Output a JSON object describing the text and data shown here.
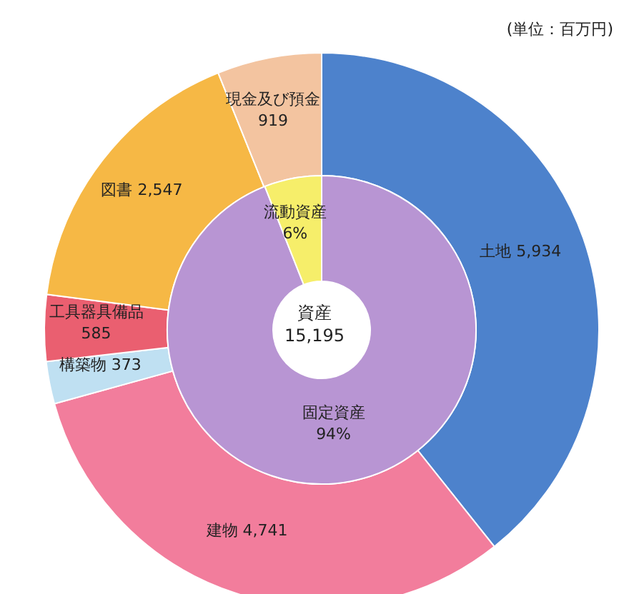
{
  "chart_data": [
    {
      "type": "donut",
      "annotations": [
        "(単位：百万円)"
      ],
      "data_labels": true,
      "categories": [
        "土地",
        "建物",
        "構築物",
        "工具器具備品",
        "図書",
        "現金及び預金"
      ],
      "values": [
        5934,
        4741,
        373,
        585,
        2547,
        919
      ],
      "value_labels": [
        "5,934",
        "4,741",
        "373",
        "585",
        "2,547",
        "919"
      ],
      "colors": [
        "#4d82cc",
        "#f27d9c",
        "#bfe0f2",
        "#ea5f70",
        "#f6b845",
        "#f3c4a0"
      ]
    },
    {
      "type": "donut",
      "annotations": [
        "資産",
        "15,195"
      ],
      "data_labels": true,
      "categories": [
        "固定資産",
        "流動資産"
      ],
      "values": [
        94,
        6
      ],
      "value_labels": [
        "94%",
        "6%"
      ],
      "colors": [
        "#b895d3",
        "#f6ee6a"
      ]
    }
  ]
}
